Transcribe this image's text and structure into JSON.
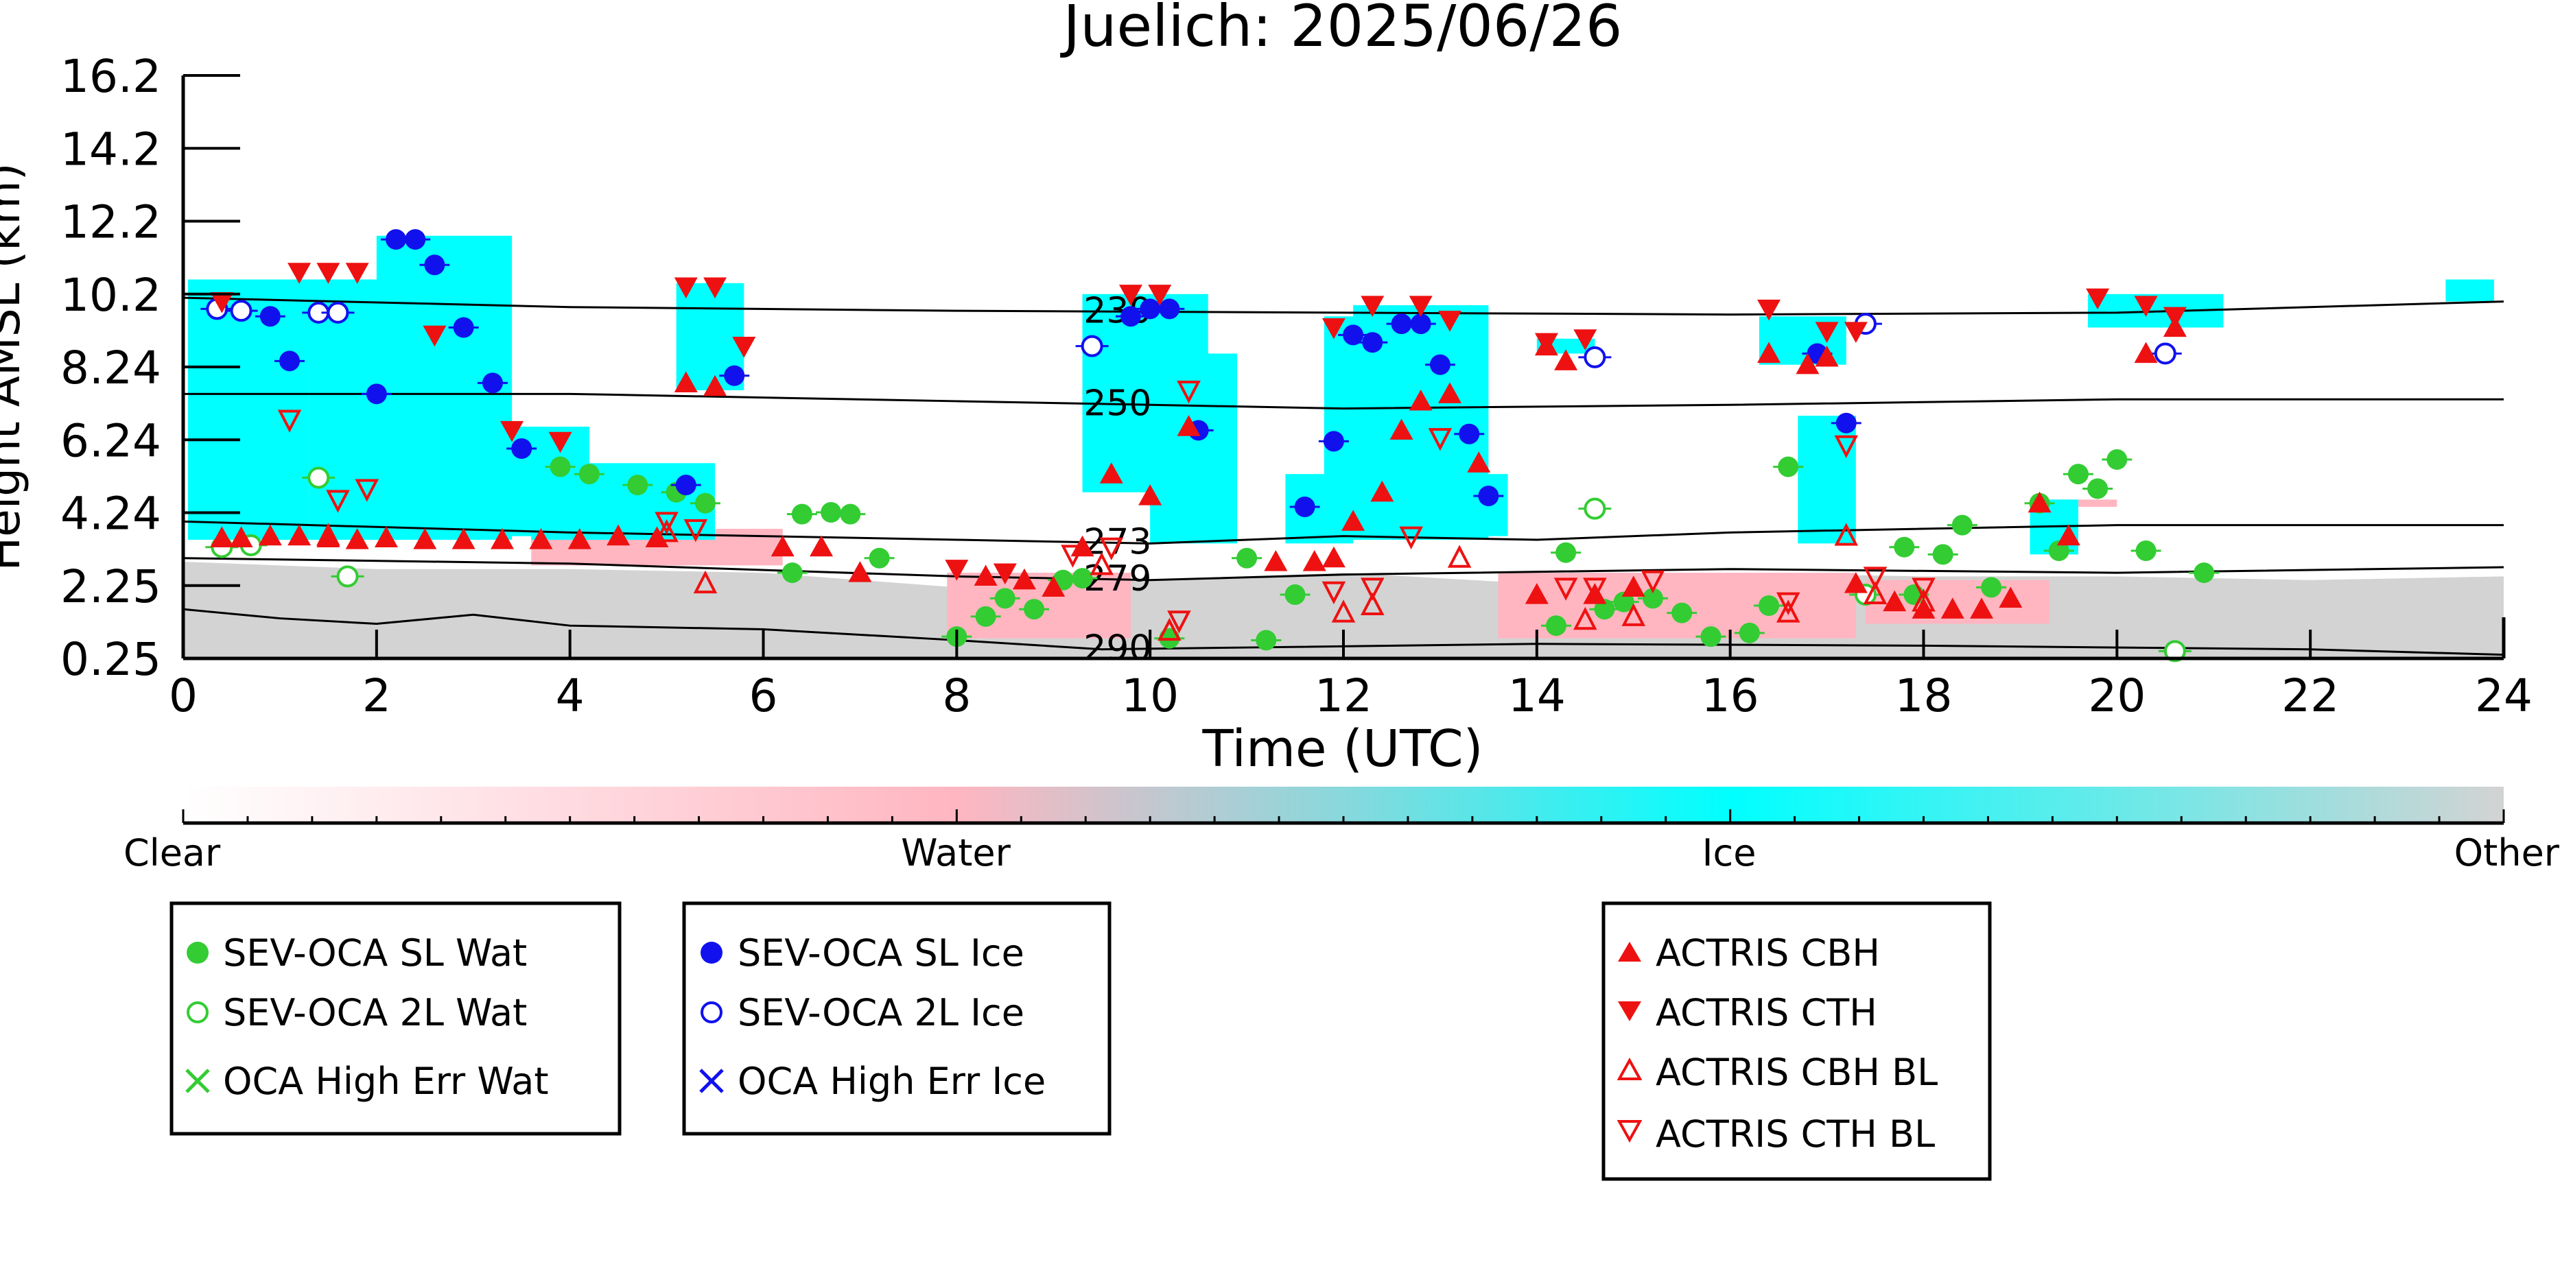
{
  "chart_data": {
    "type": "scatter",
    "title": "Juelich: 2025/06/26",
    "xlabel": "Time (UTC)",
    "ylabel": "Height AMSL (km)",
    "xlim": [
      0,
      24
    ],
    "ylim": [
      0.25,
      16.2
    ],
    "x_ticks": [
      0,
      2,
      4,
      6,
      8,
      10,
      12,
      14,
      16,
      18,
      20,
      22,
      24
    ],
    "y_ticks": [
      0.25,
      2.25,
      4.24,
      6.24,
      8.24,
      10.2,
      12.2,
      14.2,
      16.2
    ],
    "y_tick_labels": [
      "0.25",
      "2.25",
      "4.24",
      "6.24",
      "8.24",
      "10.2",
      "12.2",
      "14.2",
      "16.2"
    ],
    "grid": false,
    "colorbar": {
      "labels": [
        "Clear",
        "Water",
        "Ice",
        "Other"
      ],
      "colors": [
        "#ffffff",
        "#ffb6c1",
        "#00ffff",
        "#d3d3d3"
      ]
    },
    "isotherms": [
      {
        "label": "230",
        "label_x": 9.7,
        "points": [
          [
            0,
            10.1
          ],
          [
            4,
            9.85
          ],
          [
            8,
            9.75
          ],
          [
            12,
            9.7
          ],
          [
            16,
            9.65
          ],
          [
            20,
            9.7
          ],
          [
            24,
            10.0
          ]
        ]
      },
      {
        "label": "250",
        "label_x": 9.7,
        "points": [
          [
            0,
            7.5
          ],
          [
            4,
            7.5
          ],
          [
            8,
            7.3
          ],
          [
            12,
            7.1
          ],
          [
            16,
            7.2
          ],
          [
            20,
            7.35
          ],
          [
            24,
            7.35
          ]
        ]
      },
      {
        "label": "273",
        "label_x": 9.7,
        "points": [
          [
            0,
            4.0
          ],
          [
            4,
            3.7
          ],
          [
            8,
            3.5
          ],
          [
            10,
            3.4
          ],
          [
            12,
            3.6
          ],
          [
            14,
            3.5
          ],
          [
            16,
            3.7
          ],
          [
            20,
            3.9
          ],
          [
            24,
            3.9
          ]
        ]
      },
      {
        "label": "279",
        "label_x": 9.7,
        "points": [
          [
            0,
            3.0
          ],
          [
            4,
            2.85
          ],
          [
            8,
            2.5
          ],
          [
            10,
            2.4
          ],
          [
            12,
            2.55
          ],
          [
            16,
            2.7
          ],
          [
            20,
            2.6
          ],
          [
            24,
            2.75
          ]
        ]
      },
      {
        "label": "290",
        "label_x": 9.7,
        "points": [
          [
            0,
            1.6
          ],
          [
            1,
            1.35
          ],
          [
            2,
            1.2
          ],
          [
            3,
            1.45
          ],
          [
            4,
            1.15
          ],
          [
            6,
            1.05
          ],
          [
            8,
            0.75
          ],
          [
            9.5,
            0.5
          ],
          [
            11,
            0.55
          ],
          [
            14,
            0.65
          ],
          [
            18,
            0.6
          ],
          [
            22,
            0.5
          ],
          [
            24,
            0.35
          ]
        ]
      }
    ],
    "series": [
      {
        "name": "SEV-OCA SL Wat",
        "color": "#33cc33",
        "marker": "filled-circle",
        "points": [
          [
            3.9,
            5.5
          ],
          [
            4.2,
            5.3
          ],
          [
            4.7,
            5.0
          ],
          [
            5.1,
            4.8
          ],
          [
            5.4,
            4.5
          ],
          [
            6.4,
            4.2
          ],
          [
            6.7,
            4.25
          ],
          [
            6.9,
            4.2
          ],
          [
            7.2,
            3.0
          ],
          [
            6.3,
            2.6
          ],
          [
            8.0,
            0.85
          ],
          [
            8.3,
            1.4
          ],
          [
            8.5,
            1.9
          ],
          [
            8.8,
            1.6
          ],
          [
            9.1,
            2.4
          ],
          [
            9.3,
            2.45
          ],
          [
            10.2,
            0.8
          ],
          [
            11.0,
            3.0
          ],
          [
            11.2,
            0.75
          ],
          [
            11.5,
            2.0
          ],
          [
            14.2,
            1.15
          ],
          [
            14.3,
            3.15
          ],
          [
            14.7,
            1.6
          ],
          [
            14.9,
            1.8
          ],
          [
            15.2,
            1.9
          ],
          [
            15.5,
            1.5
          ],
          [
            15.8,
            0.85
          ],
          [
            16.2,
            0.95
          ],
          [
            16.4,
            1.7
          ],
          [
            16.6,
            5.5
          ],
          [
            17.8,
            3.3
          ],
          [
            17.9,
            2.0
          ],
          [
            18.2,
            3.1
          ],
          [
            18.4,
            3.9
          ],
          [
            18.7,
            2.2
          ],
          [
            19.2,
            4.5
          ],
          [
            19.4,
            3.2
          ],
          [
            19.6,
            5.3
          ],
          [
            19.8,
            4.9
          ],
          [
            20.0,
            5.7
          ],
          [
            20.3,
            3.2
          ],
          [
            20.9,
            2.6
          ]
        ]
      },
      {
        "name": "SEV-OCA 2L Wat",
        "color": "#33cc33",
        "marker": "open-circle",
        "points": [
          [
            0.4,
            3.3
          ],
          [
            0.7,
            3.35
          ],
          [
            1.4,
            5.2
          ],
          [
            1.7,
            2.5
          ],
          [
            14.6,
            4.35
          ],
          [
            17.4,
            2.0
          ],
          [
            20.6,
            0.45
          ]
        ]
      },
      {
        "name": "OCA High Err Wat",
        "color": "#33cc33",
        "marker": "x",
        "points": []
      },
      {
        "name": "SEV-OCA SL Ice",
        "color": "#1111ee",
        "marker": "filled-circle",
        "points": [
          [
            0.9,
            9.6
          ],
          [
            1.1,
            8.4
          ],
          [
            2.0,
            7.5
          ],
          [
            2.2,
            11.7
          ],
          [
            2.4,
            11.7
          ],
          [
            2.6,
            11.0
          ],
          [
            2.9,
            9.3
          ],
          [
            3.2,
            7.8
          ],
          [
            3.5,
            6.0
          ],
          [
            5.2,
            5.0
          ],
          [
            5.7,
            8.0
          ],
          [
            9.8,
            9.6
          ],
          [
            10.0,
            9.8
          ],
          [
            10.2,
            9.8
          ],
          [
            10.5,
            6.5
          ],
          [
            11.6,
            4.4
          ],
          [
            11.9,
            6.2
          ],
          [
            12.1,
            9.1
          ],
          [
            12.3,
            8.9
          ],
          [
            12.6,
            9.4
          ],
          [
            12.8,
            9.4
          ],
          [
            13.0,
            8.3
          ],
          [
            13.3,
            6.4
          ],
          [
            13.5,
            4.7
          ],
          [
            16.9,
            8.6
          ],
          [
            17.2,
            6.7
          ]
        ]
      },
      {
        "name": "SEV-OCA 2L Ice",
        "color": "#1111ee",
        "marker": "open-circle",
        "points": [
          [
            0.35,
            9.8
          ],
          [
            0.6,
            9.75
          ],
          [
            1.4,
            9.7
          ],
          [
            1.6,
            9.7
          ],
          [
            9.4,
            8.8
          ],
          [
            14.6,
            8.5
          ],
          [
            17.4,
            9.4
          ],
          [
            20.5,
            8.6
          ]
        ]
      },
      {
        "name": "OCA High Err Ice",
        "color": "#1111ee",
        "marker": "x",
        "points": []
      },
      {
        "name": "ACTRIS CBH",
        "color": "#ee1111",
        "marker": "filled-triangle-up",
        "points": [
          [
            0.4,
            3.55
          ],
          [
            0.6,
            3.55
          ],
          [
            0.9,
            3.6
          ],
          [
            1.2,
            3.6
          ],
          [
            1.5,
            3.55
          ],
          [
            1.8,
            3.5
          ],
          [
            2.1,
            3.55
          ],
          [
            2.5,
            3.5
          ],
          [
            2.9,
            3.5
          ],
          [
            3.3,
            3.5
          ],
          [
            3.7,
            3.5
          ],
          [
            4.1,
            3.5
          ],
          [
            4.5,
            3.6
          ],
          [
            4.9,
            3.55
          ],
          [
            5.2,
            7.8
          ],
          [
            5.5,
            7.7
          ],
          [
            6.2,
            3.3
          ],
          [
            6.6,
            3.3
          ],
          [
            7.0,
            2.6
          ],
          [
            8.3,
            2.5
          ],
          [
            8.7,
            2.4
          ],
          [
            9.0,
            2.2
          ],
          [
            9.3,
            3.3
          ],
          [
            9.6,
            5.3
          ],
          [
            10.0,
            4.7
          ],
          [
            10.4,
            6.6
          ],
          [
            11.3,
            2.9
          ],
          [
            11.7,
            2.9
          ],
          [
            11.9,
            3.0
          ],
          [
            12.1,
            4.0
          ],
          [
            12.4,
            4.8
          ],
          [
            12.6,
            6.5
          ],
          [
            12.8,
            7.3
          ],
          [
            13.1,
            7.5
          ],
          [
            13.4,
            5.6
          ],
          [
            14.0,
            2.0
          ],
          [
            14.1,
            8.8
          ],
          [
            14.3,
            8.4
          ],
          [
            14.6,
            2.0
          ],
          [
            15.0,
            2.2
          ],
          [
            16.4,
            8.6
          ],
          [
            16.8,
            8.3
          ],
          [
            17.0,
            8.5
          ],
          [
            17.3,
            2.3
          ],
          [
            17.7,
            1.8
          ],
          [
            18.0,
            1.6
          ],
          [
            18.3,
            1.6
          ],
          [
            18.6,
            1.6
          ],
          [
            18.9,
            1.9
          ],
          [
            19.2,
            4.5
          ],
          [
            19.5,
            3.6
          ],
          [
            20.3,
            8.6
          ],
          [
            20.6,
            9.3
          ]
        ]
      },
      {
        "name": "ACTRIS CTH",
        "color": "#ee1111",
        "marker": "filled-triangle-down",
        "points": [
          [
            0.4,
            10.0
          ],
          [
            1.2,
            10.8
          ],
          [
            1.5,
            10.8
          ],
          [
            1.8,
            10.8
          ],
          [
            2.6,
            9.1
          ],
          [
            3.4,
            6.5
          ],
          [
            3.9,
            6.2
          ],
          [
            5.2,
            10.4
          ],
          [
            5.5,
            10.4
          ],
          [
            5.8,
            8.8
          ],
          [
            8.0,
            2.7
          ],
          [
            8.5,
            2.6
          ],
          [
            9.8,
            10.2
          ],
          [
            10.1,
            10.2
          ],
          [
            11.9,
            9.3
          ],
          [
            12.3,
            9.9
          ],
          [
            12.8,
            9.9
          ],
          [
            13.1,
            9.5
          ],
          [
            14.1,
            8.9
          ],
          [
            14.5,
            9.0
          ],
          [
            16.4,
            9.8
          ],
          [
            17.0,
            9.2
          ],
          [
            17.3,
            9.2
          ],
          [
            19.8,
            10.1
          ],
          [
            20.3,
            9.9
          ],
          [
            20.6,
            9.6
          ]
        ]
      },
      {
        "name": "ACTRIS CBH BL",
        "color": "#ee1111",
        "marker": "open-triangle-up",
        "points": [
          [
            1.5,
            3.6
          ],
          [
            5.0,
            3.7
          ],
          [
            5.4,
            2.3
          ],
          [
            9.5,
            2.8
          ],
          [
            10.2,
            1.0
          ],
          [
            12.0,
            1.5
          ],
          [
            12.3,
            1.7
          ],
          [
            13.2,
            3.0
          ],
          [
            14.5,
            1.3
          ],
          [
            15.0,
            1.4
          ],
          [
            16.6,
            1.5
          ],
          [
            17.2,
            3.6
          ],
          [
            17.5,
            2.0
          ],
          [
            18.0,
            1.8
          ]
        ]
      },
      {
        "name": "ACTRIS CTH BL",
        "color": "#ee1111",
        "marker": "open-triangle-down",
        "points": [
          [
            1.1,
            6.8
          ],
          [
            1.6,
            4.6
          ],
          [
            1.9,
            4.9
          ],
          [
            5.0,
            4.0
          ],
          [
            5.3,
            3.8
          ],
          [
            9.2,
            3.1
          ],
          [
            9.6,
            3.3
          ],
          [
            10.3,
            1.3
          ],
          [
            10.4,
            7.6
          ],
          [
            11.9,
            2.1
          ],
          [
            12.3,
            2.2
          ],
          [
            12.7,
            3.6
          ],
          [
            13.0,
            6.3
          ],
          [
            14.3,
            2.2
          ],
          [
            14.6,
            2.2
          ],
          [
            15.2,
            2.4
          ],
          [
            16.6,
            1.8
          ],
          [
            17.2,
            6.1
          ],
          [
            17.5,
            2.5
          ],
          [
            18.0,
            2.2
          ]
        ]
      }
    ],
    "legend_boxes": [
      {
        "entries": [
          "SEV-OCA SL Wat",
          "SEV-OCA 2L Wat",
          "OCA High Err Wat"
        ]
      },
      {
        "entries": [
          "SEV-OCA SL Ice",
          "SEV-OCA 2L Ice",
          "OCA High Err Ice"
        ]
      },
      {
        "entries": [
          "ACTRIS CBH",
          "ACTRIS CTH",
          "ACTRIS CBH BL",
          "ACTRIS CTH BL"
        ]
      }
    ]
  }
}
